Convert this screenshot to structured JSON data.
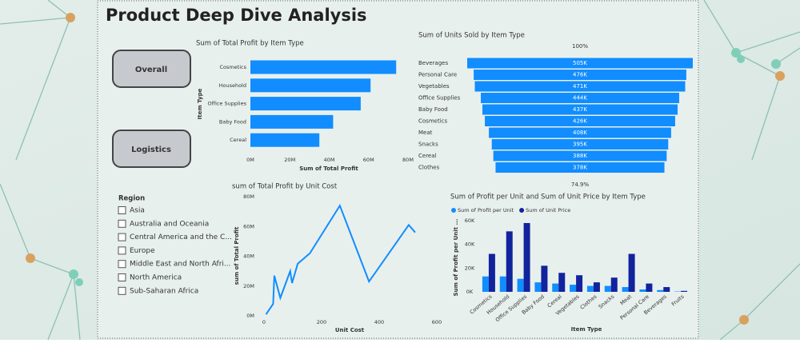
{
  "header": {
    "title": "Product Deep Dive Analysis"
  },
  "buttons": [
    "Overall",
    "Logistics"
  ],
  "slicer": {
    "title": "Region",
    "options": [
      "Asia",
      "Australia and Oceania",
      "Central America and the C...",
      "Europe",
      "Middle East and North Afri...",
      "North America",
      "Sub-Saharan Africa"
    ]
  },
  "chart_data": [
    {
      "type": "bar",
      "orientation": "horizontal",
      "title": "Sum of Total Profit by Item Type",
      "x_label": "Sum of Total Profit",
      "y_label": "Item Type",
      "categories": [
        "Cosmetics",
        "Household",
        "Office Supplies",
        "Baby Food",
        "Cereal"
      ],
      "values": [
        74000000,
        61000000,
        56000000,
        42000000,
        35000000
      ],
      "color": "#118dff",
      "xlim": [
        0,
        80000000
      ],
      "xticks": [
        {
          "value": 0,
          "label": "0M"
        },
        {
          "value": 20000000,
          "label": "20M"
        },
        {
          "value": 40000000,
          "label": "40M"
        },
        {
          "value": 60000000,
          "label": "60M"
        },
        {
          "value": 80000000,
          "label": "80M"
        }
      ],
      "grid": false
    },
    {
      "type": "funnel",
      "title": "Sum of Units Sold by Item Type",
      "categories": [
        "Beverages",
        "Personal Care",
        "Vegetables",
        "Office Supplies",
        "Baby Food",
        "Cosmetics",
        "Meat",
        "Snacks",
        "Cereal",
        "Clothes"
      ],
      "values": [
        505000,
        476000,
        471000,
        444000,
        437000,
        426000,
        408000,
        395000,
        388000,
        378000
      ],
      "value_labels": [
        "505K",
        "476K",
        "471K",
        "444K",
        "437K",
        "426K",
        "408K",
        "395K",
        "388K",
        "378K"
      ],
      "top_label": "100%",
      "bottom_label": "74.9%",
      "color": "#118dff"
    },
    {
      "type": "line",
      "title": "sum of Total Profit by Unit Cost",
      "x_label": "Unit Cost",
      "y_label": "sum of Total Profit",
      "x": [
        6.92,
        31.79,
        35.84,
        56.67,
        90.93,
        97.44,
        117.11,
        159.42,
        263.33,
        364.69,
        502.54,
        524.96
      ],
      "values": [
        1000000,
        8000000,
        27000000,
        12000000,
        30000000,
        22000000,
        35000000,
        42000000,
        74000000,
        23000000,
        61000000,
        56000000
      ],
      "color": "#118dff",
      "xlim": [
        0,
        600
      ],
      "xticks": [
        0,
        200,
        400,
        600
      ],
      "ylim": [
        0,
        80000000
      ],
      "yticks": [
        {
          "value": 0,
          "label": "0M"
        },
        {
          "value": 20000000,
          "label": "20M"
        },
        {
          "value": 40000000,
          "label": "40M"
        },
        {
          "value": 60000000,
          "label": "60M"
        },
        {
          "value": 80000000,
          "label": "80M"
        }
      ],
      "grid": false
    },
    {
      "type": "column",
      "title": "Sum of Profit per Unit and Sum of Unit Price by Item Type",
      "x_label": "Item Type",
      "y_label": "Sum of Profit per Unit ...",
      "categories": [
        "Cosmetics",
        "Household",
        "Office Supplies",
        "Baby Food",
        "Cereal",
        "Vegetables",
        "Clothes",
        "Snacks",
        "Meat",
        "Personal Care",
        "Beverages",
        "Fruits"
      ],
      "series": [
        {
          "name": "Sum of Profit per Unit",
          "color": "#118dff",
          "values": [
            13000,
            13000,
            11000,
            8000,
            7000,
            6000,
            5000,
            5000,
            4000,
            2000,
            1500,
            300
          ]
        },
        {
          "name": "Sum of Unit Price",
          "color": "#12239e",
          "values": [
            32000,
            51000,
            58000,
            22000,
            16000,
            14000,
            8000,
            12000,
            32000,
            7000,
            4000,
            800
          ]
        }
      ],
      "ylim": [
        0,
        60000
      ],
      "yticks": [
        {
          "value": 0,
          "label": "0K"
        },
        {
          "value": 20000,
          "label": "20K"
        },
        {
          "value": 40000,
          "label": "40K"
        },
        {
          "value": 60000,
          "label": "60K"
        }
      ],
      "legend": "top-left",
      "grid": false
    }
  ]
}
